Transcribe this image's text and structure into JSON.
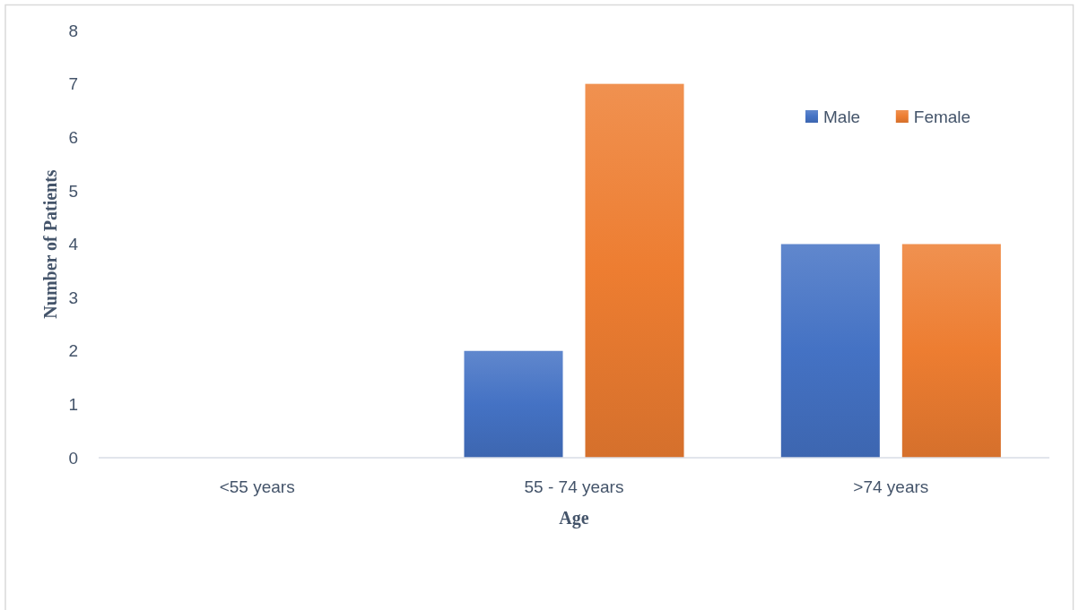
{
  "chart_data": {
    "type": "bar",
    "xlabel": "Age",
    "ylabel": "Number of Patients",
    "categories": [
      "<55 years",
      "55 - 74 years",
      ">74 years"
    ],
    "series": [
      {
        "name": "Male",
        "color": "#4472c4",
        "values": [
          0,
          2,
          4
        ]
      },
      {
        "name": "Female",
        "color": "#ed7d31",
        "values": [
          0,
          7,
          4
        ]
      }
    ],
    "ylim": [
      0,
      8
    ],
    "yticks": [
      0,
      1,
      2,
      3,
      4,
      5,
      6,
      7,
      8
    ],
    "grid": false,
    "legend": "top right"
  }
}
